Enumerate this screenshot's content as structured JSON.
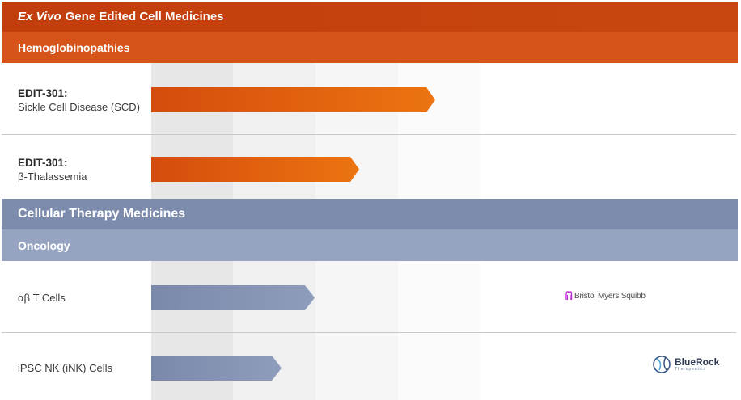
{
  "sections": {
    "gene_edited": {
      "title_italic": "Ex Vivo",
      "title_rest": "Gene Edited Cell Medicines",
      "subcategory": "Hemoglobinopathies"
    },
    "cellular": {
      "title": "Cellular Therapy Medicines",
      "subcategory": "Oncology"
    }
  },
  "programs": [
    {
      "name": "EDIT-301:",
      "indication": "Sickle Cell Disease (SCD)",
      "progress_pct": 86,
      "color": "#e0600f"
    },
    {
      "name": "EDIT-301:",
      "indication": "β-Thalassemia",
      "progress_pct": 63,
      "color": "#e0600f"
    },
    {
      "name": "",
      "indication": "αβ T Cells",
      "progress_pct": 50,
      "color": "#7f8eaf"
    },
    {
      "name": "",
      "indication": "iPSC NK (iNK) Cells",
      "progress_pct": 40,
      "color": "#7f8eaf"
    }
  ],
  "partners": {
    "bms": "Bristol Myers Squibb",
    "bluerock_name": "BlueRock",
    "bluerock_sub": "Therapeutics"
  }
}
